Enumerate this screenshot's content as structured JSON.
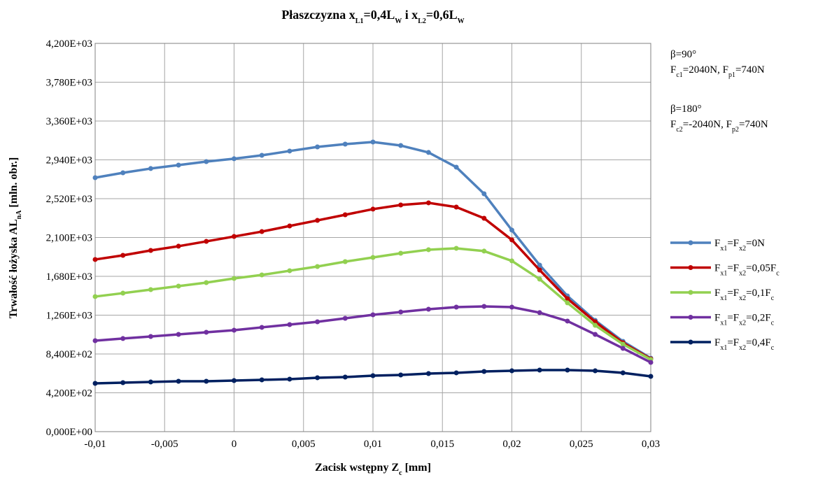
{
  "chart_data": {
    "type": "line",
    "title": [
      "Płaszczyzna x",
      "L1",
      "=0,4L",
      "W",
      " i x",
      "L2",
      "=0,6L",
      "W"
    ],
    "x_label": [
      "Zacisk wstępny Z",
      "c",
      " [mm]"
    ],
    "y_label": [
      "Trwałość łożyska  AL",
      "nA",
      " [mln. obr.]"
    ],
    "annotations": [
      [
        "β=90°"
      ],
      [
        "F",
        "c1",
        "=2040N, F",
        "p1",
        "=740N"
      ],
      [
        "β=180°"
      ],
      [
        "F",
        "c2",
        "=-2040N, F",
        "p2",
        "=740N"
      ]
    ],
    "x": [
      -0.01,
      -0.008,
      -0.006,
      -0.004,
      -0.002,
      0,
      0.002,
      0.004,
      0.006,
      0.008,
      0.01,
      0.012,
      0.014,
      0.016,
      0.018,
      0.02,
      0.022,
      0.024,
      0.026,
      0.028,
      0.03
    ],
    "series": [
      {
        "name": [
          "F",
          "x1",
          "=F",
          "x2",
          "=0N"
        ],
        "color": "#4f81bd",
        "values": [
          2747,
          2800,
          2846,
          2883,
          2921,
          2952,
          2989,
          3035,
          3080,
          3110,
          3133,
          3095,
          3020,
          2861,
          2573,
          2180,
          1801,
          1468,
          1203,
          976,
          795
        ]
      },
      {
        "name": [
          "F",
          "x1",
          "=F",
          "x2",
          "=0,05F",
          "c"
        ],
        "color": "#c00000",
        "values": [
          1862,
          1907,
          1960,
          2006,
          2058,
          2111,
          2164,
          2225,
          2285,
          2346,
          2407,
          2452,
          2475,
          2429,
          2308,
          2074,
          1748,
          1438,
          1188,
          961,
          787
        ]
      },
      {
        "name": [
          "F",
          "x1",
          "=F",
          "x2",
          "=0,1F",
          "c"
        ],
        "color": "#92d050",
        "values": [
          1461,
          1498,
          1536,
          1574,
          1612,
          1657,
          1695,
          1741,
          1786,
          1839,
          1884,
          1930,
          1968,
          1983,
          1953,
          1847,
          1650,
          1393,
          1150,
          946,
          780
        ]
      },
      {
        "name": [
          "F",
          "x1",
          "=F",
          "x2",
          "=0,2F",
          "c"
        ],
        "color": "#7030a0",
        "values": [
          984,
          1007,
          1029,
          1052,
          1075,
          1097,
          1128,
          1158,
          1188,
          1226,
          1264,
          1294,
          1324,
          1347,
          1355,
          1347,
          1287,
          1196,
          1052,
          901,
          749
        ]
      },
      {
        "name": [
          "F",
          "x1",
          "=F",
          "x2",
          "=0,4F",
          "c"
        ],
        "color": "#002060",
        "values": [
          522,
          530,
          537,
          545,
          545,
          552,
          560,
          568,
          583,
          590,
          605,
          613,
          628,
          636,
          651,
          658,
          666,
          666,
          658,
          636,
          598
        ]
      }
    ],
    "xlim": [
      -0.01,
      0.03
    ],
    "xticks": [
      {
        "value": -0.01,
        "label": "-0,01"
      },
      {
        "value": -0.005,
        "label": "-0,005"
      },
      0,
      {
        "value": 0.005,
        "label": "0,005"
      },
      {
        "value": 0.01,
        "label": "0,01"
      },
      {
        "value": 0.015,
        "label": "0,015"
      },
      {
        "value": 0.02,
        "label": "0,02"
      },
      {
        "value": 0.025,
        "label": "0,025"
      },
      {
        "value": 0.03,
        "label": "0,03"
      }
    ],
    "ylim": [
      0,
      4200
    ],
    "yticks": [
      {
        "value": 0,
        "label": "0,000E+00"
      },
      {
        "value": 420,
        "label": "4,200E+02"
      },
      {
        "value": 840,
        "label": "8,400E+02"
      },
      {
        "value": 1260,
        "label": "1,260E+03"
      },
      {
        "value": 1680,
        "label": "1,680E+03"
      },
      {
        "value": 2100,
        "label": "2,100E+03"
      },
      {
        "value": 2520,
        "label": "2,520E+03"
      },
      {
        "value": 2940,
        "label": "2,940E+03"
      },
      {
        "value": 3360,
        "label": "3,360E+03"
      },
      {
        "value": 3780,
        "label": "3,780E+03"
      },
      {
        "value": 4200,
        "label": "4,200E+03"
      }
    ],
    "grid": true,
    "legend": "right"
  }
}
